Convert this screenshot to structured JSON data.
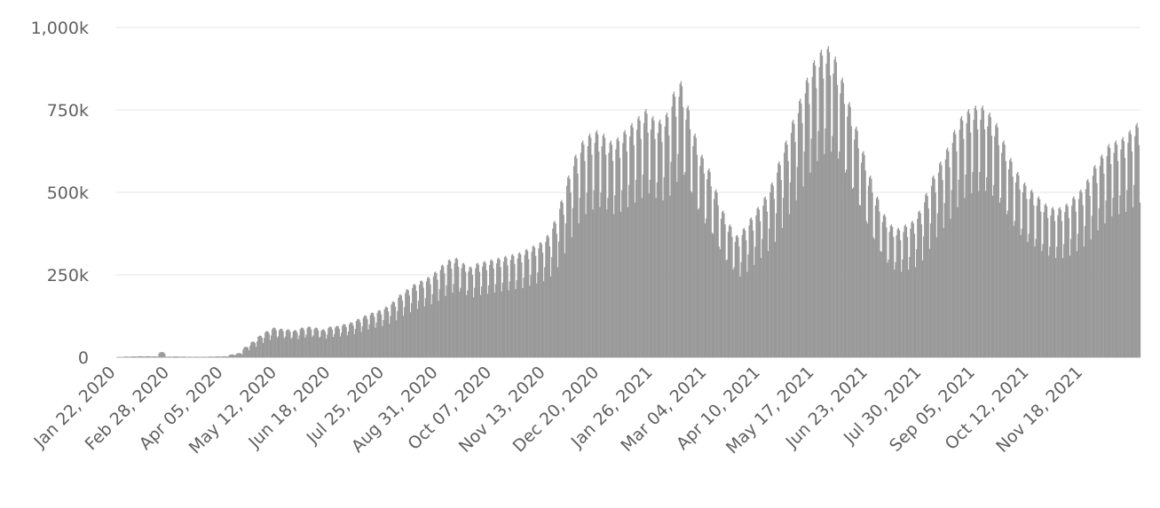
{
  "chart_data": {
    "type": "bar",
    "title": "",
    "xlabel": "",
    "ylabel": "",
    "ylim": [
      0,
      1000000
    ],
    "y_ticks": [
      0,
      250000,
      500000,
      750000,
      1000000
    ],
    "y_tick_labels": [
      "0",
      "250k",
      "500k",
      "750k",
      "1,000k"
    ],
    "x_tick_labels": [
      "Jan 22, 2020",
      "Feb 28, 2020",
      "Apr 05, 2020",
      "May 12, 2020",
      "Jun 18, 2020",
      "Jul 25, 2020",
      "Aug 31, 2020",
      "Oct 07, 2020",
      "Nov 13, 2020",
      "Dec 20, 2020",
      "Jan 26, 2021",
      "Mar 04, 2021",
      "Apr 10, 2021",
      "May 17, 2021",
      "Jun 23, 2021",
      "Jul 30, 2021",
      "Sep 05, 2021",
      "Oct 12, 2021",
      "Nov 18, 2021"
    ],
    "x_range": [
      "2020-01-22",
      "2021-12-20"
    ],
    "grid": true,
    "bar_color": "#999999",
    "weekly_values_note_free": true,
    "series": [
      {
        "values": [
          1000,
          2000,
          2500,
          3000,
          3000,
          2500,
          15000,
          2000,
          2500,
          2000,
          1500,
          1500,
          1500,
          2000,
          2500,
          3000,
          8000,
          12000,
          30000,
          45000,
          62000,
          75000,
          85000,
          82000,
          80000,
          78000,
          85000,
          88000,
          85000,
          80000,
          88000,
          90000,
          95000,
          100000,
          110000,
          120000,
          128000,
          135000,
          145000,
          160000,
          180000,
          195000,
          210000,
          220000,
          230000,
          245000,
          265000,
          280000,
          285000,
          270000,
          260000,
          270000,
          275000,
          280000,
          285000,
          290000,
          295000,
          300000,
          310000,
          320000,
          330000,
          350000,
          390000,
          450000,
          520000,
          580000,
          620000,
          640000,
          650000,
          640000,
          620000,
          630000,
          650000,
          670000,
          690000,
          710000,
          690000,
          680000,
          700000,
          760000,
          790000,
          720000,
          640000,
          580000,
          540000,
          480000,
          420000,
          380000,
          350000,
          370000,
          400000,
          430000,
          460000,
          500000,
          560000,
          620000,
          680000,
          740000,
          800000,
          850000,
          880000,
          890000,
          860000,
          800000,
          730000,
          660000,
          590000,
          520000,
          460000,
          410000,
          380000,
          370000,
          380000,
          390000,
          420000,
          470000,
          520000,
          560000,
          600000,
          650000,
          690000,
          710000,
          720000,
          720000,
          700000,
          670000,
          620000,
          570000,
          530000,
          500000,
          480000,
          460000,
          440000,
          430000,
          430000,
          440000,
          460000,
          480000,
          510000,
          550000,
          580000,
          610000,
          620000,
          630000,
          650000,
          670000
        ]
      }
    ]
  }
}
